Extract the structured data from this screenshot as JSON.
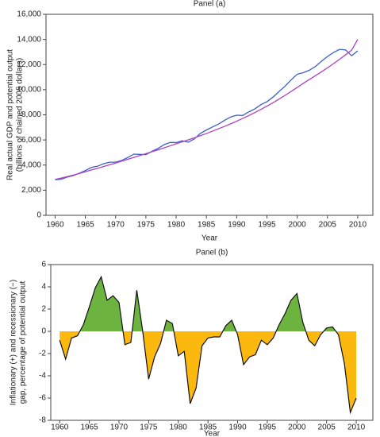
{
  "chart_data": [
    {
      "type": "line",
      "title": "Panel (a)",
      "xlabel": "Year",
      "ylabel": [
        "Real actual GDP and potential output",
        "(billions of chained 2005 dollars)"
      ],
      "x": [
        1960,
        1961,
        1962,
        1963,
        1964,
        1965,
        1966,
        1967,
        1968,
        1969,
        1970,
        1971,
        1972,
        1973,
        1974,
        1975,
        1976,
        1977,
        1978,
        1979,
        1980,
        1981,
        1982,
        1983,
        1984,
        1985,
        1986,
        1987,
        1988,
        1989,
        1990,
        1991,
        1992,
        1993,
        1994,
        1995,
        1996,
        1997,
        1998,
        1999,
        2000,
        2001,
        2002,
        2003,
        2004,
        2005,
        2006,
        2007,
        2008,
        2009,
        2010
      ],
      "series": [
        {
          "color": "#3a5fcd",
          "values": [
            2830,
            2870,
            3040,
            3160,
            3350,
            3570,
            3810,
            3910,
            4100,
            4230,
            4230,
            4370,
            4600,
            4870,
            4850,
            4830,
            5090,
            5320,
            5620,
            5800,
            5790,
            5930,
            5820,
            6080,
            6520,
            6790,
            7030,
            7260,
            7560,
            7830,
            7970,
            7950,
            8230,
            8470,
            8810,
            9040,
            9410,
            9850,
            10280,
            10780,
            11230,
            11350,
            11550,
            11840,
            12260,
            12640,
            12960,
            13210,
            13160,
            12700,
            13090
          ]
        },
        {
          "color": "#b040c0",
          "values": [
            2860,
            2960,
            3080,
            3200,
            3330,
            3470,
            3610,
            3740,
            3880,
            4020,
            4160,
            4310,
            4460,
            4610,
            4760,
            4910,
            5060,
            5210,
            5370,
            5530,
            5690,
            5850,
            6010,
            6170,
            6340,
            6510,
            6700,
            6890,
            7080,
            7280,
            7490,
            7710,
            7940,
            8180,
            8430,
            8690,
            8960,
            9250,
            9550,
            9860,
            10180,
            10500,
            10810,
            11110,
            11420,
            11740,
            12070,
            12420,
            12780,
            13150,
            14000
          ]
        }
      ],
      "xlim": [
        1958.5,
        2012.5
      ],
      "xticks": [
        1960,
        1965,
        1970,
        1975,
        1980,
        1985,
        1990,
        1995,
        2000,
        2005,
        2010
      ],
      "ylim": [
        0,
        16000
      ],
      "yticks": [
        0,
        {
          "value": 2000,
          "label": "2,000"
        },
        {
          "value": 4000,
          "label": "4,000"
        },
        {
          "value": 6000,
          "label": "6,000"
        },
        {
          "value": 8000,
          "label": "8,000"
        },
        {
          "value": 10000,
          "label": "10,000"
        },
        {
          "value": 12000,
          "label": "12,000"
        },
        {
          "value": 14000,
          "label": "14,000"
        },
        {
          "value": 16000,
          "label": "16,000"
        }
      ]
    },
    {
      "type": "area",
      "title": "Panel (b)",
      "xlabel": "Year",
      "ylabel": [
        "Inflationary (+) and recessionary (−)",
        "gap, percentage of potential output"
      ],
      "x": [
        1960,
        1961,
        1962,
        1963,
        1964,
        1965,
        1966,
        1967,
        1968,
        1969,
        1970,
        1971,
        1972,
        1973,
        1974,
        1975,
        1976,
        1977,
        1978,
        1979,
        1980,
        1981,
        1982,
        1983,
        1984,
        1985,
        1986,
        1987,
        1988,
        1989,
        1990,
        1991,
        1992,
        1993,
        1994,
        1995,
        1996,
        1997,
        1998,
        1999,
        2000,
        2001,
        2002,
        2003,
        2004,
        2005,
        2006,
        2007,
        2008,
        2009,
        2010
      ],
      "series": [
        {
          "color": "#111111",
          "values": [
            -0.8,
            -2.5,
            -0.6,
            -0.4,
            0.6,
            2.2,
            3.9,
            4.9,
            2.8,
            3.2,
            2.6,
            -1.2,
            -1.0,
            3.7,
            0.0,
            -4.3,
            -2.3,
            -1.1,
            1.0,
            0.7,
            -2.2,
            -1.8,
            -6.5,
            -5.1,
            -1.3,
            -0.6,
            -0.5,
            -0.5,
            0.5,
            1.0,
            -0.3,
            -3.0,
            -2.3,
            -2.1,
            -0.8,
            -1.2,
            -0.6,
            0.6,
            1.6,
            2.8,
            3.4,
            0.8,
            -0.8,
            -1.3,
            -0.3,
            0.3,
            0.4,
            -0.3,
            -2.9,
            -7.3,
            -6.0
          ]
        }
      ],
      "positive_color": "#6db33f",
      "negative_color": "#fbb80f",
      "xlim": [
        1958.5,
        2012.8
      ],
      "xticks": [
        1960,
        1965,
        1970,
        1975,
        1980,
        1985,
        1990,
        1995,
        2000,
        2005,
        2010
      ],
      "ylim": [
        -8,
        6
      ],
      "yticks": [
        -8,
        -6,
        -4,
        -2,
        0,
        2,
        4,
        6
      ]
    }
  ]
}
